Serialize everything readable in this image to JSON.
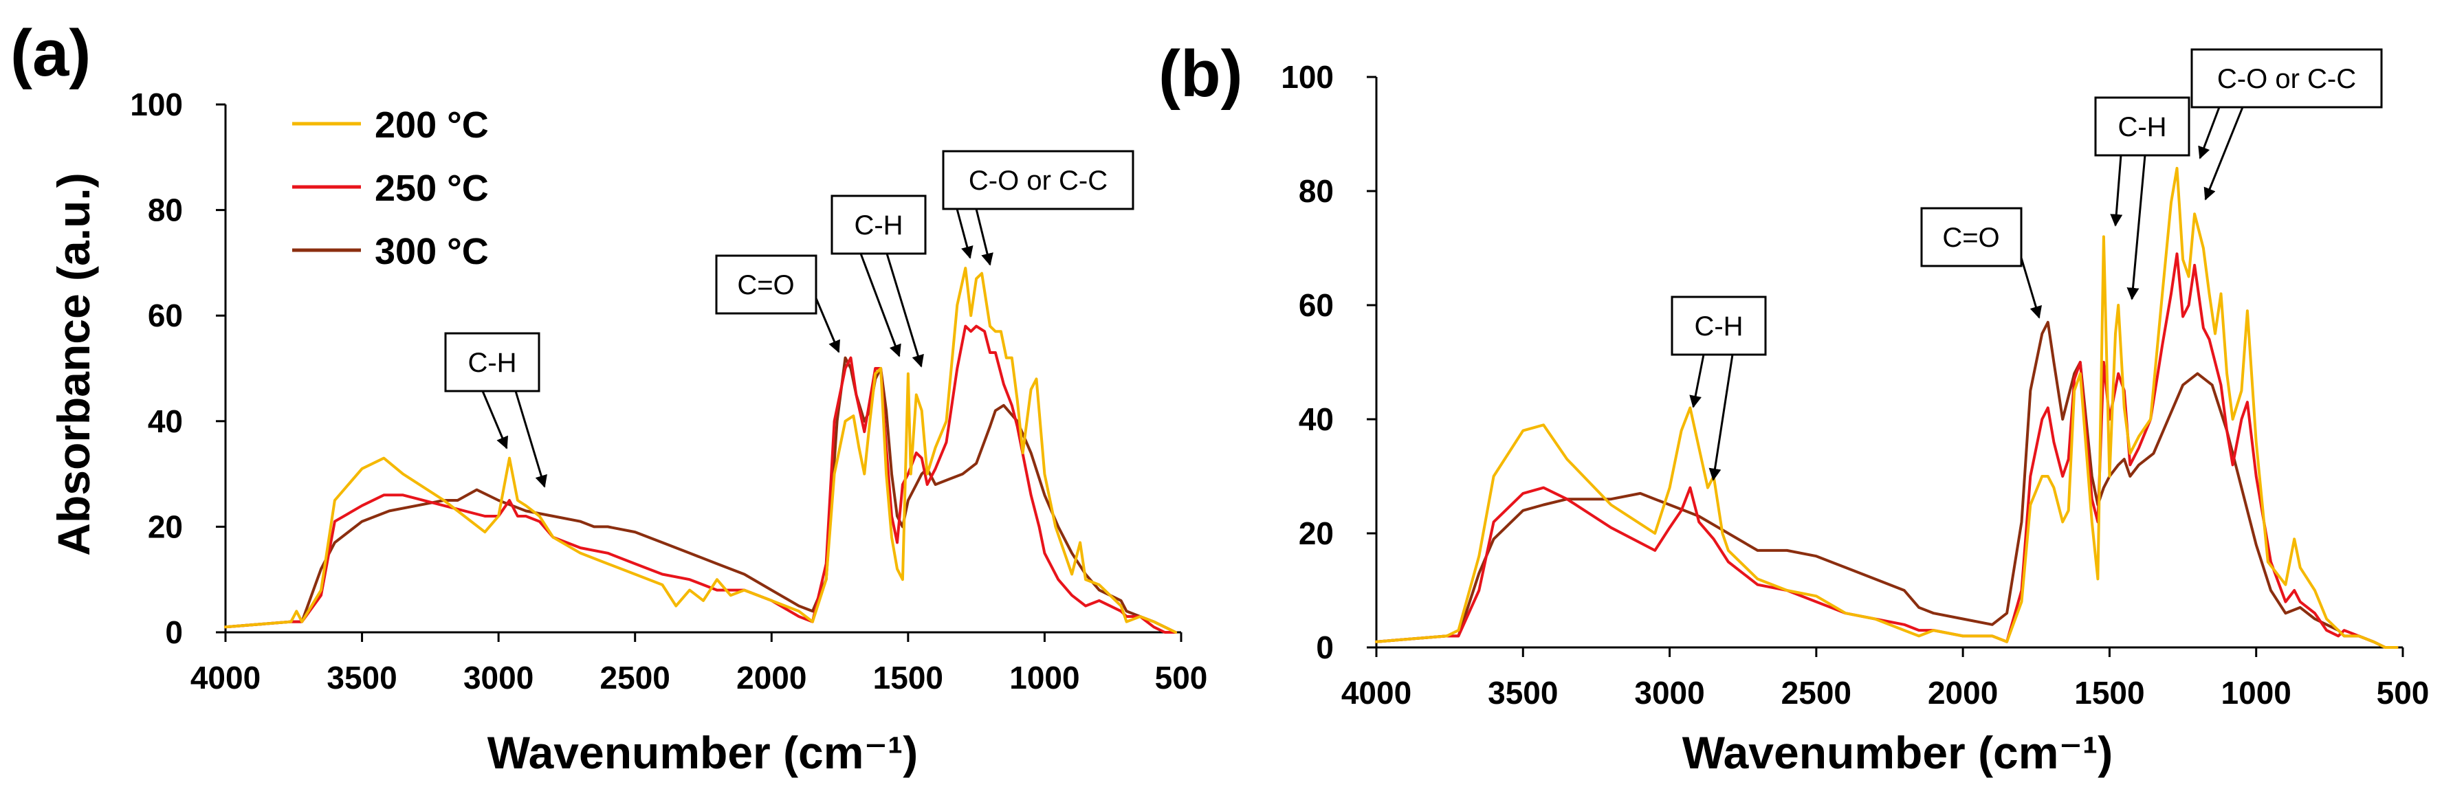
{
  "chart_data": [
    {
      "panel": "(a)",
      "type": "line",
      "xlabel": "Wavenumber (cm⁻¹)",
      "ylabel": "Absorbance (a.u.)",
      "xlim": [
        4000,
        500
      ],
      "ylim": [
        0,
        100
      ],
      "xticks": [
        4000,
        3500,
        3000,
        2500,
        2000,
        1500,
        1000,
        500
      ],
      "yticks": [
        0,
        20,
        40,
        60,
        80,
        100
      ],
      "legend": {
        "placement": "top-left",
        "entries": [
          "200 °C",
          "250 °C",
          "300 °C"
        ]
      },
      "series": [
        {
          "name": "200 °C",
          "color": "#F5B800",
          "x": [
            4000,
            3760,
            3740,
            3720,
            3650,
            3600,
            3500,
            3420,
            3350,
            3200,
            3050,
            3000,
            2960,
            2930,
            2900,
            2850,
            2800,
            2700,
            2600,
            2500,
            2400,
            2350,
            2300,
            2250,
            2200,
            2150,
            2100,
            2000,
            1900,
            1850,
            1800,
            1770,
            1730,
            1700,
            1680,
            1660,
            1640,
            1620,
            1600,
            1580,
            1560,
            1540,
            1520,
            1500,
            1490,
            1470,
            1450,
            1430,
            1400,
            1360,
            1320,
            1290,
            1270,
            1250,
            1230,
            1200,
            1180,
            1160,
            1140,
            1120,
            1100,
            1080,
            1050,
            1030,
            1000,
            960,
            900,
            870,
            850,
            800,
            760,
            720,
            700,
            650,
            600,
            560,
            520
          ],
          "y": [
            1,
            2,
            4,
            2,
            8,
            25,
            31,
            33,
            30,
            25,
            19,
            22,
            33,
            25,
            24,
            22,
            18,
            15,
            13,
            11,
            9,
            5,
            8,
            6,
            10,
            7,
            8,
            6,
            4,
            2,
            10,
            30,
            40,
            41,
            35,
            30,
            40,
            49,
            50,
            30,
            18,
            12,
            10,
            49,
            30,
            45,
            42,
            30,
            35,
            40,
            62,
            69,
            60,
            67,
            68,
            58,
            57,
            57,
            52,
            52,
            44,
            34,
            46,
            48,
            30,
            20,
            11,
            17,
            10,
            9,
            7,
            5,
            2,
            3,
            2,
            1,
            0
          ]
        },
        {
          "name": "250 °C",
          "color": "#E8141B",
          "x": [
            4000,
            3760,
            3720,
            3650,
            3600,
            3500,
            3420,
            3350,
            3200,
            3050,
            3000,
            2960,
            2930,
            2900,
            2850,
            2800,
            2700,
            2600,
            2500,
            2400,
            2300,
            2200,
            2100,
            2000,
            1900,
            1850,
            1800,
            1770,
            1730,
            1710,
            1690,
            1660,
            1640,
            1620,
            1600,
            1580,
            1560,
            1540,
            1520,
            1500,
            1470,
            1450,
            1430,
            1400,
            1360,
            1320,
            1290,
            1270,
            1250,
            1220,
            1200,
            1180,
            1150,
            1120,
            1100,
            1050,
            1020,
            1000,
            950,
            900,
            850,
            800,
            760,
            720,
            700,
            650,
            600,
            560,
            520
          ],
          "y": [
            1,
            2,
            2,
            7,
            21,
            24,
            26,
            26,
            24,
            22,
            22,
            25,
            22,
            22,
            21,
            18,
            16,
            15,
            13,
            11,
            10,
            8,
            8,
            6,
            3,
            2,
            13,
            40,
            50,
            52,
            45,
            38,
            44,
            50,
            50,
            35,
            22,
            17,
            28,
            30,
            34,
            33,
            28,
            31,
            36,
            50,
            58,
            57,
            58,
            57,
            53,
            53,
            47,
            43,
            39,
            26,
            20,
            15,
            10,
            7,
            5,
            6,
            5,
            4,
            3,
            3,
            1,
            0,
            0
          ]
        },
        {
          "name": "300 °C",
          "color": "#8B2E0F",
          "x": [
            4000,
            3760,
            3720,
            3650,
            3600,
            3500,
            3400,
            3300,
            3200,
            3150,
            3080,
            3000,
            2900,
            2800,
            2700,
            2650,
            2600,
            2500,
            2400,
            2300,
            2200,
            2100,
            2000,
            1900,
            1850,
            1800,
            1760,
            1730,
            1710,
            1690,
            1660,
            1640,
            1620,
            1600,
            1580,
            1560,
            1540,
            1520,
            1500,
            1470,
            1450,
            1430,
            1400,
            1350,
            1300,
            1250,
            1200,
            1180,
            1150,
            1100,
            1050,
            1000,
            950,
            900,
            850,
            800,
            760,
            720,
            700,
            650,
            600,
            560,
            520
          ],
          "y": [
            1,
            2,
            2,
            12,
            17,
            21,
            23,
            24,
            25,
            25,
            27,
            25,
            23,
            22,
            21,
            20,
            20,
            19,
            17,
            15,
            13,
            11,
            8,
            5,
            4,
            10,
            40,
            52,
            50,
            45,
            40,
            42,
            48,
            50,
            42,
            30,
            22,
            20,
            25,
            28,
            30,
            31,
            28,
            29,
            30,
            32,
            39,
            42,
            43,
            40,
            34,
            26,
            20,
            15,
            11,
            8,
            7,
            6,
            4,
            3,
            2,
            1,
            0
          ]
        }
      ],
      "annotations": [
        {
          "label": "C-H"
        },
        {
          "label": "C=O"
        },
        {
          "label": "C-H"
        },
        {
          "label": "C-O or C-C"
        }
      ]
    },
    {
      "panel": "(b)",
      "type": "line",
      "xlabel": "Wavenumber (cm⁻¹)",
      "ylabel": "",
      "xlim": [
        4000,
        500
      ],
      "ylim": [
        0,
        100
      ],
      "xticks": [
        4000,
        3500,
        3000,
        2500,
        2000,
        1500,
        1000,
        500
      ],
      "yticks": [
        0,
        20,
        40,
        60,
        80,
        100
      ],
      "legend": null,
      "series": [
        {
          "name": "200 °C",
          "color": "#F5B800",
          "x": [
            4000,
            3760,
            3720,
            3650,
            3600,
            3500,
            3430,
            3350,
            3200,
            3050,
            3000,
            2960,
            2930,
            2900,
            2870,
            2850,
            2820,
            2800,
            2700,
            2600,
            2500,
            2400,
            2300,
            2200,
            2150,
            2100,
            2000,
            1900,
            1850,
            1800,
            1770,
            1730,
            1710,
            1690,
            1660,
            1640,
            1620,
            1600,
            1580,
            1560,
            1540,
            1520,
            1500,
            1480,
            1470,
            1450,
            1430,
            1400,
            1360,
            1320,
            1290,
            1270,
            1250,
            1230,
            1210,
            1180,
            1160,
            1140,
            1120,
            1100,
            1080,
            1050,
            1030,
            1000,
            960,
            900,
            870,
            850,
            800,
            760,
            720,
            700,
            650,
            600,
            560,
            520
          ],
          "y": [
            1,
            2,
            3,
            16,
            30,
            38,
            39,
            33,
            25,
            20,
            28,
            38,
            42,
            35,
            28,
            30,
            20,
            17,
            12,
            10,
            9,
            6,
            5,
            3,
            2,
            3,
            2,
            2,
            1,
            8,
            25,
            30,
            30,
            28,
            22,
            24,
            45,
            48,
            35,
            22,
            12,
            72,
            30,
            55,
            60,
            42,
            34,
            37,
            40,
            62,
            78,
            84,
            68,
            65,
            76,
            70,
            62,
            55,
            62,
            48,
            40,
            45,
            59,
            36,
            15,
            11,
            19,
            14,
            10,
            5,
            3,
            2,
            2,
            1,
            0,
            0
          ]
        },
        {
          "name": "250 °C",
          "color": "#E8141B",
          "x": [
            4000,
            3760,
            3720,
            3650,
            3600,
            3500,
            3430,
            3350,
            3200,
            3050,
            3000,
            2960,
            2930,
            2900,
            2850,
            2800,
            2700,
            2600,
            2500,
            2400,
            2300,
            2200,
            2150,
            2100,
            2000,
            1900,
            1850,
            1800,
            1770,
            1730,
            1710,
            1690,
            1660,
            1640,
            1620,
            1600,
            1580,
            1560,
            1540,
            1520,
            1500,
            1470,
            1450,
            1430,
            1400,
            1360,
            1320,
            1290,
            1270,
            1250,
            1230,
            1210,
            1180,
            1160,
            1140,
            1120,
            1100,
            1080,
            1050,
            1030,
            1000,
            950,
            900,
            870,
            850,
            800,
            760,
            720,
            700,
            650,
            600,
            560,
            520
          ],
          "y": [
            1,
            2,
            2,
            10,
            22,
            27,
            28,
            26,
            21,
            17,
            21,
            24,
            28,
            22,
            19,
            15,
            11,
            10,
            8,
            6,
            5,
            4,
            3,
            3,
            2,
            2,
            1,
            10,
            30,
            40,
            42,
            36,
            30,
            33,
            47,
            50,
            38,
            26,
            22,
            50,
            40,
            48,
            45,
            32,
            35,
            40,
            53,
            62,
            69,
            58,
            60,
            67,
            56,
            54,
            50,
            46,
            38,
            32,
            40,
            43,
            30,
            15,
            8,
            10,
            8,
            6,
            3,
            2,
            3,
            2,
            1,
            0,
            0
          ]
        },
        {
          "name": "300 °C",
          "color": "#8B2E0F",
          "x": [
            4000,
            3760,
            3720,
            3650,
            3600,
            3500,
            3430,
            3350,
            3200,
            3100,
            3050,
            3000,
            2950,
            2900,
            2800,
            2700,
            2600,
            2500,
            2400,
            2300,
            2200,
            2150,
            2100,
            2000,
            1900,
            1850,
            1800,
            1770,
            1730,
            1710,
            1690,
            1660,
            1640,
            1620,
            1600,
            1580,
            1560,
            1540,
            1520,
            1500,
            1470,
            1450,
            1430,
            1400,
            1350,
            1300,
            1250,
            1200,
            1150,
            1100,
            1050,
            1000,
            950,
            900,
            850,
            800,
            760,
            720,
            700,
            650,
            600,
            560,
            520
          ],
          "y": [
            1,
            2,
            2,
            13,
            19,
            24,
            25,
            26,
            26,
            27,
            26,
            25,
            24,
            23,
            20,
            17,
            17,
            16,
            14,
            12,
            10,
            7,
            6,
            5,
            4,
            6,
            22,
            45,
            55,
            57,
            50,
            40,
            44,
            48,
            50,
            40,
            30,
            25,
            28,
            30,
            32,
            33,
            30,
            32,
            34,
            40,
            46,
            48,
            46,
            38,
            28,
            18,
            10,
            6,
            7,
            5,
            4,
            3,
            2,
            2,
            1,
            0,
            0
          ]
        }
      ],
      "annotations": [
        {
          "label": "C-H"
        },
        {
          "label": "C=O"
        },
        {
          "label": "C-H"
        },
        {
          "label": "C-O or C-C"
        }
      ]
    }
  ]
}
